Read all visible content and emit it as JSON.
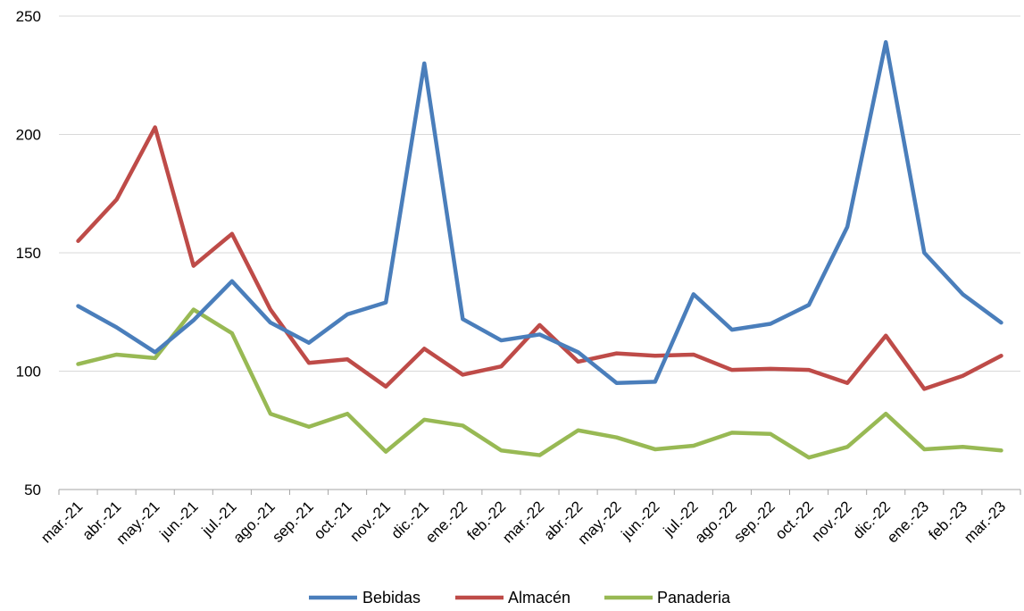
{
  "chart_data": {
    "type": "line",
    "categories": [
      "mar.-21",
      "abr.-21",
      "may.-21",
      "jun.-21",
      "jul.-21",
      "ago.-21",
      "sep.-21",
      "oct.-21",
      "nov.-21",
      "dic.-21",
      "ene.-22",
      "feb.-22",
      "mar.-22",
      "abr.-22",
      "may.-22",
      "jun.-22",
      "jul.-22",
      "ago.-22",
      "sep.-22",
      "oct.-22",
      "nov.-22",
      "dic.-22",
      "ene.-23",
      "feb.-23",
      "mar.-23"
    ],
    "series": [
      {
        "name": "Bebidas",
        "color": "#4a7ebb",
        "values": [
          127.5,
          118.5,
          108,
          121.5,
          138,
          120.5,
          112,
          124,
          129,
          230,
          122,
          113,
          115.5,
          108,
          95,
          95.5,
          132.5,
          117.5,
          120,
          128,
          161,
          239,
          150,
          132.5,
          120.5
        ]
      },
      {
        "name": "Almacén",
        "color": "#be4b48",
        "values": [
          155,
          172.5,
          203,
          144.5,
          158,
          126,
          103.5,
          105,
          93.5,
          109.5,
          98.5,
          102,
          119.5,
          104,
          107.5,
          106.5,
          107,
          100.5,
          101,
          100.5,
          95,
          115,
          92.5,
          98,
          106.5
        ]
      },
      {
        "name": "Panaderia",
        "color": "#98b954",
        "values": [
          103,
          107,
          105.5,
          126,
          116,
          82,
          76.5,
          82,
          66,
          79.5,
          77,
          66.5,
          64.5,
          75,
          72,
          67,
          68.5,
          74,
          73.5,
          63.5,
          68,
          82,
          67,
          68,
          66.5
        ]
      }
    ],
    "yticks": [
      "50",
      "100",
      "150",
      "200",
      "250"
    ],
    "ylim": [
      50,
      250
    ],
    "grid": true,
    "legend": "bottom"
  }
}
